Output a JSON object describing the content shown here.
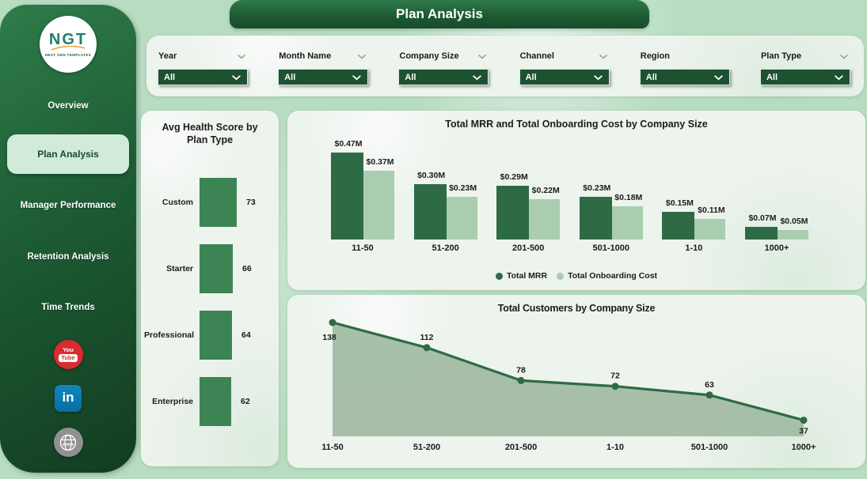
{
  "header": {
    "title": "Plan Analysis"
  },
  "sidebar": {
    "logo": {
      "text": "NGT",
      "subtext": "NEXT GEN TEMPLATES"
    },
    "items": [
      {
        "label": "Overview",
        "active": false
      },
      {
        "label": "Plan Analysis",
        "active": true
      },
      {
        "label": "Manager Performance",
        "active": false
      },
      {
        "label": "Retention Analysis",
        "active": false
      },
      {
        "label": "Time Trends",
        "active": false
      }
    ],
    "socials": [
      {
        "name": "youtube",
        "text_top": "You",
        "text_bottom": "Tube"
      },
      {
        "name": "linkedin",
        "text": "in"
      },
      {
        "name": "web",
        "text": "www"
      }
    ]
  },
  "filters": [
    {
      "label": "Year",
      "value": "All",
      "header_chevron": true
    },
    {
      "label": "Month Name",
      "value": "All",
      "header_chevron": true
    },
    {
      "label": "Company Size",
      "value": "All",
      "header_chevron": true
    },
    {
      "label": "Channel",
      "value": "All",
      "header_chevron": true
    },
    {
      "label": "Region",
      "value": "All",
      "header_chevron": false
    },
    {
      "label": "Plan Type",
      "value": "All",
      "header_chevron": true
    }
  ],
  "colors": {
    "accent_dark": "#2e6b44",
    "accent_light": "#a9cdae",
    "health_bar": "#3d8454",
    "area_fill": "#a1bba3",
    "area_line": "#2e6b44",
    "page_bg": "#b7dcc1",
    "panel_bg": "#edf3ed",
    "sidebar_green": "#1d5c34",
    "dropdown_bg": "#1d5230",
    "selected_nav_bg": "#d2ebd8",
    "youtube_red": "#da2b31",
    "linkedin_blue": "#0a77b5",
    "web_gray": "#909090"
  },
  "chart_data": [
    {
      "type": "bar",
      "orientation": "horizontal",
      "title": "Avg Health Score by Plan Type",
      "categories": [
        "Custom",
        "Starter",
        "Professional",
        "Enterprise"
      ],
      "values": [
        73,
        66,
        64,
        62
      ]
    },
    {
      "type": "bar",
      "title": "Total MRR and Total Onboarding Cost by Company Size",
      "categories": [
        "11-50",
        "51-200",
        "201-500",
        "501-1000",
        "1-10",
        "1000+"
      ],
      "series": [
        {
          "name": "Total MRR",
          "values_millions": [
            0.47,
            0.3,
            0.29,
            0.23,
            0.15,
            0.07
          ],
          "labels": [
            "$0.47M",
            "$0.30M",
            "$0.29M",
            "$0.23M",
            "$0.15M",
            "$0.07M"
          ],
          "color": "#2e6b44"
        },
        {
          "name": "Total Onboarding Cost",
          "values_millions": [
            0.37,
            0.23,
            0.22,
            0.18,
            0.11,
            0.05
          ],
          "labels": [
            "$0.37M",
            "$0.23M",
            "$0.22M",
            "$0.18M",
            "$0.11M",
            "$0.05M"
          ],
          "color": "#a9cdae"
        }
      ],
      "legend_position": "bottom",
      "ylim_millions": [
        0,
        0.5
      ]
    },
    {
      "type": "area",
      "title": "Total Customers by Company Size",
      "categories": [
        "11-50",
        "51-200",
        "201-500",
        "1-10",
        "501-1000",
        "1000+"
      ],
      "values": [
        138,
        112,
        78,
        72,
        63,
        37
      ],
      "label_side": [
        "below",
        "above",
        "above",
        "above",
        "above",
        "below"
      ]
    }
  ]
}
